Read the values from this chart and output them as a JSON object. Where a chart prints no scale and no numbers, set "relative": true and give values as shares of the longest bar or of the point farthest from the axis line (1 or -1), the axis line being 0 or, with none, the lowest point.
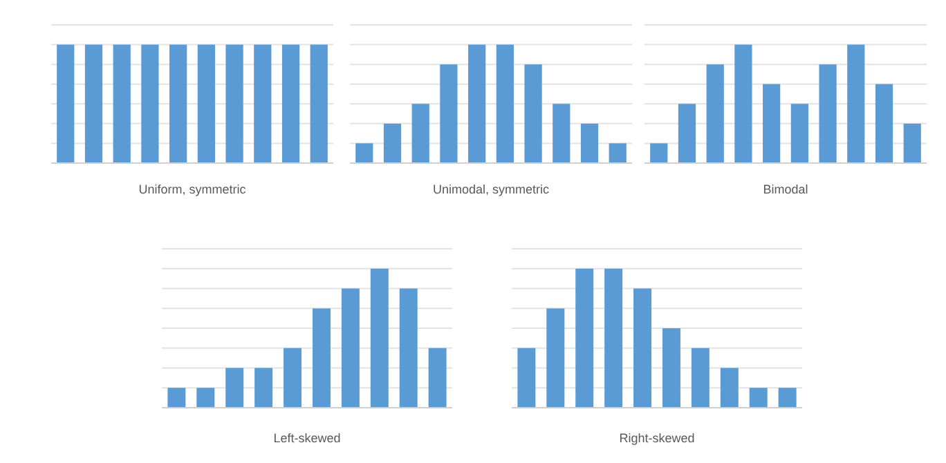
{
  "chart_data": [
    {
      "type": "bar",
      "title": "Uniform, symmetric",
      "categories": [
        null,
        null,
        null,
        null,
        null,
        null,
        null,
        null,
        null,
        null
      ],
      "values": [
        1,
        1,
        1,
        1,
        1,
        1,
        1,
        1,
        1,
        1
      ],
      "color": "#5b9bd5",
      "relative": true,
      "grid": true,
      "tick_labels": false
    },
    {
      "type": "bar",
      "title": "Unimodal, symmetric",
      "categories": [
        null,
        null,
        null,
        null,
        null,
        null,
        null,
        null,
        null,
        null
      ],
      "values": [
        0.167,
        0.333,
        0.5,
        0.833,
        1,
        1,
        0.833,
        0.5,
        0.333,
        0.167
      ],
      "color": "#5b9bd5",
      "relative": true,
      "grid": true,
      "tick_labels": false
    },
    {
      "type": "bar",
      "title": "Bimodal",
      "categories": [
        null,
        null,
        null,
        null,
        null,
        null,
        null,
        null,
        null,
        null
      ],
      "values": [
        0.167,
        0.5,
        0.833,
        1,
        0.667,
        0.5,
        0.833,
        1,
        0.667,
        0.333
      ],
      "color": "#5b9bd5",
      "relative": true,
      "grid": true,
      "tick_labels": false
    },
    {
      "type": "bar",
      "title": "Left-skewed",
      "categories": [
        null,
        null,
        null,
        null,
        null,
        null,
        null,
        null,
        null,
        null
      ],
      "values": [
        0.143,
        0.143,
        0.286,
        0.286,
        0.429,
        0.714,
        0.857,
        1,
        0.857,
        0.429
      ],
      "color": "#5b9bd5",
      "relative": true,
      "grid": true,
      "tick_labels": false
    },
    {
      "type": "bar",
      "title": "Right-skewed",
      "categories": [
        null,
        null,
        null,
        null,
        null,
        null,
        null,
        null,
        null,
        null
      ],
      "values": [
        0.429,
        0.714,
        1,
        1,
        0.857,
        0.571,
        0.429,
        0.286,
        0.143,
        0.143
      ],
      "color": "#5b9bd5",
      "relative": true,
      "grid": true,
      "tick_labels": false
    }
  ]
}
